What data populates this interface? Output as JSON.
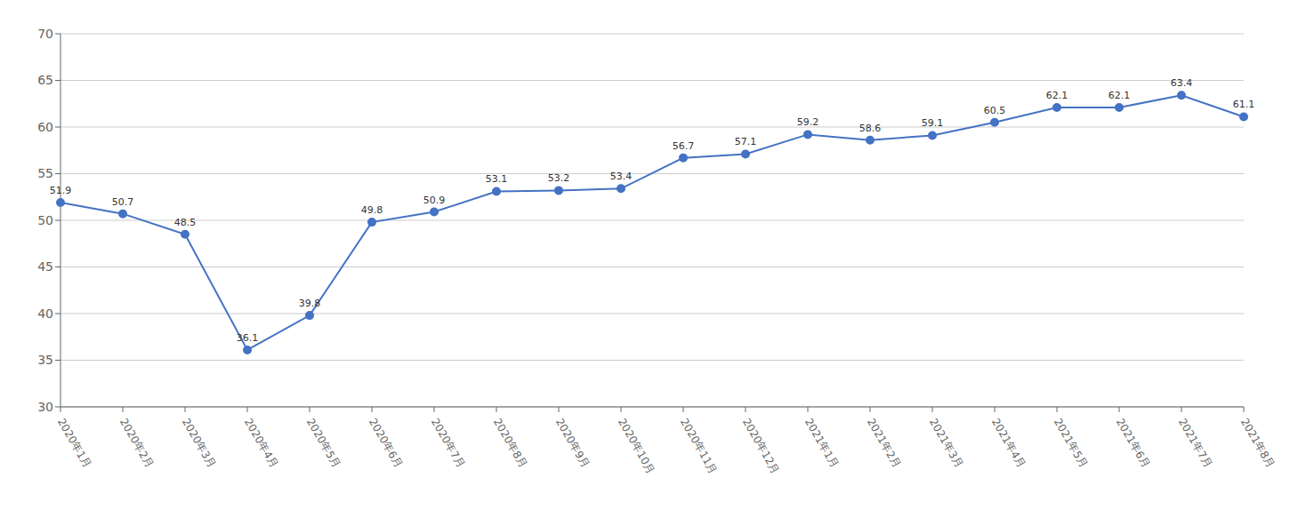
{
  "chart_data": {
    "type": "line",
    "categories": [
      "2020年1月",
      "2020年2月",
      "2020年3月",
      "2020年4月",
      "2020年5月",
      "2020年6月",
      "2020年7月",
      "2020年8月",
      "2020年9月",
      "2020年10月",
      "2020年11月",
      "2020年12月",
      "2021年1月",
      "2021年2月",
      "2021年3月",
      "2021年4月",
      "2021年5月",
      "2021年6月",
      "2021年7月",
      "2021年8月"
    ],
    "values": [
      51.9,
      50.7,
      48.5,
      36.1,
      39.8,
      49.8,
      50.9,
      53.1,
      53.2,
      53.4,
      56.7,
      57.1,
      59.2,
      58.6,
      59.1,
      60.5,
      62.1,
      62.1,
      63.4,
      61.1
    ],
    "color": "#4472C4",
    "marker": "circle",
    "ylim": [
      30,
      70
    ],
    "yticks": [
      30,
      35,
      40,
      45,
      50,
      55,
      60,
      65,
      70
    ],
    "grid": true,
    "data_labels": true
  }
}
